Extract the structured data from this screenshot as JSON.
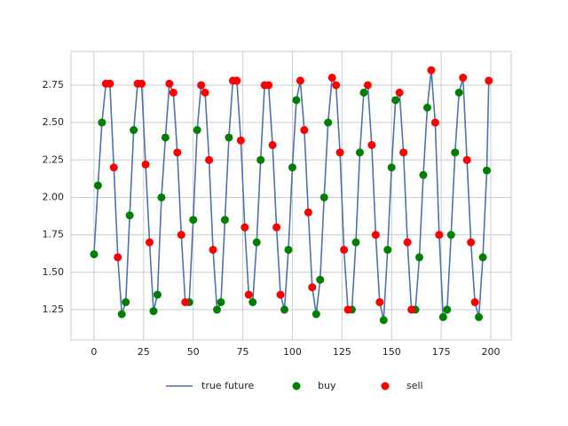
{
  "chart_data": {
    "type": "line",
    "grid": true,
    "legend": "bottom",
    "xlim": [
      -11.6,
      210.3
    ],
    "xticks": [
      0,
      25,
      50,
      75,
      100,
      125,
      150,
      175,
      200
    ],
    "ylim": [
      1.048,
      2.975
    ],
    "yticks": [
      1.25,
      {
        "value": 1.5,
        "label": "1.50"
      },
      1.75,
      {
        "value": 2.0,
        "label": "2.00"
      },
      2.25,
      {
        "value": 2.5,
        "label": "2.50"
      },
      2.75
    ],
    "series": [
      {
        "name": "true future",
        "type": "line",
        "color": "#4c72b0",
        "x": [
          0,
          2,
          4,
          6,
          8,
          10,
          12,
          14,
          16,
          18,
          20,
          22,
          24,
          26,
          28,
          30,
          32,
          34,
          36,
          38,
          40,
          42,
          44,
          46,
          48,
          50,
          52,
          54,
          56,
          58,
          60,
          62,
          64,
          66,
          68,
          70,
          72,
          74,
          76,
          78,
          80,
          82,
          84,
          86,
          88,
          90,
          92,
          94,
          96,
          98,
          100,
          102,
          104,
          106,
          108,
          110,
          112,
          114,
          116,
          118,
          120,
          122,
          124,
          126,
          128,
          130,
          132,
          134,
          136,
          138,
          140,
          142,
          144,
          146,
          148,
          150,
          152,
          154,
          156,
          158,
          160,
          162,
          164,
          166,
          168,
          170,
          172,
          174,
          176,
          178,
          180,
          182,
          184,
          186,
          188,
          190,
          192,
          194,
          196,
          198,
          199
        ],
        "values": [
          1.62,
          2.08,
          2.5,
          2.76,
          2.76,
          2.2,
          1.6,
          1.22,
          1.3,
          1.88,
          2.45,
          2.76,
          2.76,
          2.22,
          1.7,
          1.24,
          1.35,
          2.0,
          2.4,
          2.76,
          2.7,
          2.3,
          1.75,
          1.3,
          1.3,
          1.85,
          2.45,
          2.75,
          2.7,
          2.25,
          1.65,
          1.25,
          1.3,
          1.85,
          2.4,
          2.78,
          2.78,
          2.38,
          1.8,
          1.35,
          1.3,
          1.7,
          2.25,
          2.75,
          2.75,
          2.35,
          1.8,
          1.35,
          1.25,
          1.65,
          2.2,
          2.65,
          2.78,
          2.45,
          1.9,
          1.4,
          1.22,
          1.45,
          2.0,
          2.5,
          2.8,
          2.75,
          2.3,
          1.65,
          1.25,
          1.25,
          1.7,
          2.3,
          2.7,
          2.75,
          2.35,
          1.75,
          1.3,
          1.18,
          1.65,
          2.2,
          2.65,
          2.7,
          2.3,
          1.7,
          1.25,
          1.25,
          1.6,
          2.15,
          2.6,
          2.85,
          2.5,
          1.75,
          1.2,
          1.25,
          1.75,
          2.3,
          2.7,
          2.8,
          2.25,
          1.7,
          1.3,
          1.2,
          1.6,
          2.18,
          2.78
        ]
      },
      {
        "name": "buy",
        "type": "scatter",
        "color": "#008000",
        "x": [
          0,
          2,
          4,
          14,
          16,
          18,
          20,
          30,
          32,
          34,
          36,
          48,
          50,
          52,
          62,
          64,
          66,
          68,
          80,
          82,
          84,
          96,
          98,
          100,
          102,
          112,
          114,
          116,
          118,
          130,
          132,
          134,
          136,
          146,
          148,
          150,
          152,
          162,
          164,
          166,
          168,
          176,
          178,
          180,
          182,
          184,
          194,
          196,
          198
        ],
        "values": [
          1.62,
          2.08,
          2.5,
          1.22,
          1.3,
          1.88,
          2.45,
          1.24,
          1.35,
          2.0,
          2.4,
          1.3,
          1.85,
          2.45,
          1.25,
          1.3,
          1.85,
          2.4,
          1.3,
          1.7,
          2.25,
          1.25,
          1.65,
          2.2,
          2.65,
          1.22,
          1.45,
          2.0,
          2.5,
          1.25,
          1.7,
          2.3,
          2.7,
          1.18,
          1.65,
          2.2,
          2.65,
          1.25,
          1.6,
          2.15,
          2.6,
          1.2,
          1.25,
          1.75,
          2.3,
          2.7,
          1.2,
          1.6,
          2.18
        ]
      },
      {
        "name": "sell",
        "type": "scatter",
        "color": "#ff0000",
        "x": [
          6,
          8,
          10,
          12,
          22,
          24,
          26,
          28,
          38,
          40,
          42,
          44,
          46,
          54,
          56,
          58,
          60,
          70,
          72,
          74,
          76,
          78,
          86,
          88,
          90,
          92,
          94,
          104,
          106,
          108,
          110,
          120,
          122,
          124,
          126,
          128,
          138,
          140,
          142,
          144,
          154,
          156,
          158,
          160,
          170,
          172,
          174,
          186,
          188,
          190,
          192,
          199
        ],
        "values": [
          2.76,
          2.76,
          2.2,
          1.6,
          2.76,
          2.76,
          2.22,
          1.7,
          2.76,
          2.7,
          2.3,
          1.75,
          1.3,
          2.75,
          2.7,
          2.25,
          1.65,
          2.78,
          2.78,
          2.38,
          1.8,
          1.35,
          2.75,
          2.75,
          2.35,
          1.8,
          1.35,
          2.78,
          2.45,
          1.9,
          1.4,
          2.8,
          2.75,
          2.3,
          1.65,
          1.25,
          2.75,
          2.35,
          1.75,
          1.3,
          2.7,
          2.3,
          1.7,
          1.25,
          2.85,
          2.5,
          1.75,
          2.8,
          2.25,
          1.7,
          1.3,
          2.78
        ]
      }
    ]
  }
}
